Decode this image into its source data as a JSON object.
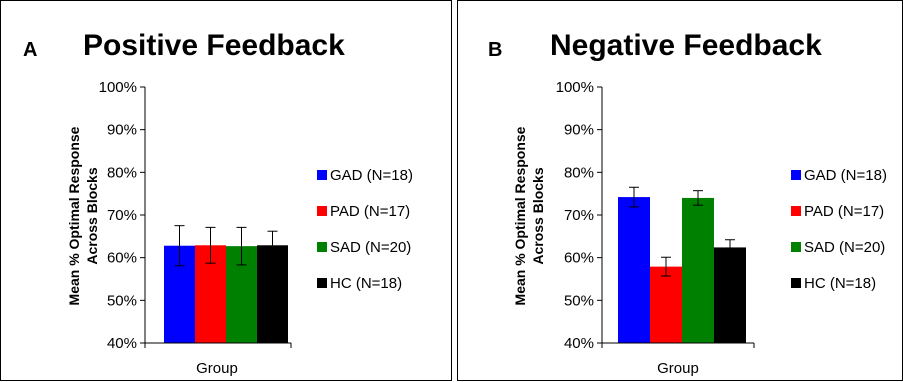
{
  "chart_data": [
    {
      "type": "bar",
      "panel_label": "A",
      "title": "Positive Feedback",
      "xlabel": "Group",
      "ylabel": [
        "Mean % Optimal Response",
        "Across Blocks"
      ],
      "yticks": [
        "40%",
        "50%",
        "60%",
        "70%",
        "80%",
        "90%",
        "100%"
      ],
      "ylim": [
        40,
        100
      ],
      "legend_position": "right",
      "series": [
        {
          "name": "GAD (N=18)",
          "value": 62.8,
          "error": 4.7,
          "color": "#0000ff"
        },
        {
          "name": "PAD (N=17)",
          "value": 62.9,
          "error": 4.2,
          "color": "#ff0000"
        },
        {
          "name": "SAD (N=20)",
          "value": 62.7,
          "error": 4.4,
          "color": "#008000"
        },
        {
          "name": "HC (N=18)",
          "value": 62.9,
          "error": 3.3,
          "color": "#000000"
        }
      ]
    },
    {
      "type": "bar",
      "panel_label": "B",
      "title": "Negative Feedback",
      "xlabel": "Group",
      "ylabel": [
        "Mean % Optimal Response",
        "Across Blocks"
      ],
      "yticks": [
        "40%",
        "50%",
        "60%",
        "70%",
        "80%",
        "90%",
        "100%"
      ],
      "ylim": [
        40,
        100
      ],
      "legend_position": "right",
      "series": [
        {
          "name": "GAD (N=18)",
          "value": 74.2,
          "error": 2.3,
          "color": "#0000ff"
        },
        {
          "name": "PAD (N=17)",
          "value": 57.9,
          "error": 2.2,
          "color": "#ff0000"
        },
        {
          "name": "SAD (N=20)",
          "value": 74.0,
          "error": 1.7,
          "color": "#008000"
        },
        {
          "name": "HC (N=18)",
          "value": 62.4,
          "error": 1.8,
          "color": "#000000"
        }
      ]
    }
  ]
}
